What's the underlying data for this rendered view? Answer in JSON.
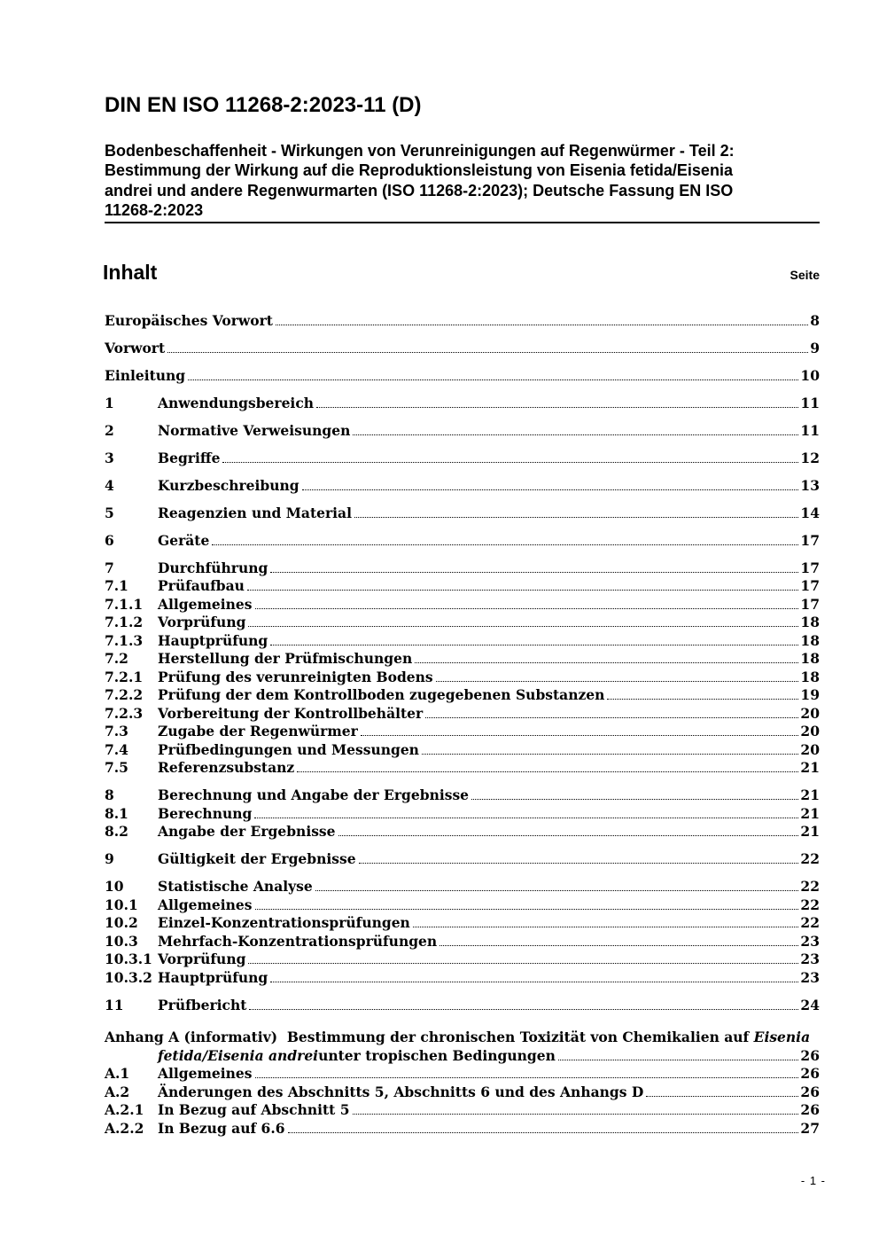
{
  "page": {
    "doc_code": "DIN EN ISO 11268-2:2023-11 (D)",
    "doc_title_lines": [
      "Bodenbeschaffenheit - Wirkungen von Verunreinigungen auf Regenwürmer - Teil 2:",
      "Bestimmung der Wirkung auf die Reproduktionsleistung von Eisenia fetida/Eisenia",
      "andrei und andere Regenwurmarten (ISO 11268-2:2023); Deutsche Fassung EN ISO",
      "11268-2:2023"
    ],
    "footer_page_number": "- 1 -"
  },
  "toc": {
    "heading": "Inhalt",
    "page_column_label": "Seite",
    "entries": [
      {
        "num": "",
        "label": "Europäisches Vorwort",
        "page": "8",
        "style": "front",
        "gap": true
      },
      {
        "num": "",
        "label": "Vorwort",
        "page": "9",
        "style": "front",
        "gap": true
      },
      {
        "num": "",
        "label": "Einleitung",
        "page": "10",
        "style": "front",
        "gap": true
      },
      {
        "num": "1",
        "label": "Anwendungsbereich",
        "page": "11",
        "style": "h1",
        "gap": true
      },
      {
        "num": "2",
        "label": "Normative Verweisungen",
        "page": "11",
        "style": "h1",
        "gap": true
      },
      {
        "num": "3",
        "label": "Begriffe",
        "page": "12",
        "style": "h1",
        "gap": true
      },
      {
        "num": "4",
        "label": "Kurzbeschreibung",
        "page": "13",
        "style": "h1",
        "gap": true
      },
      {
        "num": "5",
        "label": "Reagenzien und Material",
        "page": "14",
        "style": "h1",
        "gap": true
      },
      {
        "num": "6",
        "label": "Geräte",
        "page": "17",
        "style": "h1",
        "gap": true
      },
      {
        "num": "7",
        "label": "Durchführung",
        "page": "17",
        "style": "h1",
        "gap": true
      },
      {
        "num": "7.1",
        "label": "Prüfaufbau",
        "page": "17",
        "style": "sub",
        "gap": false
      },
      {
        "num": "7.1.1",
        "label": "Allgemeines",
        "page": "17",
        "style": "sub",
        "gap": false
      },
      {
        "num": "7.1.2",
        "label": "Vorprüfung",
        "page": "18",
        "style": "sub",
        "gap": false
      },
      {
        "num": "7.1.3",
        "label": "Hauptprüfung",
        "page": "18",
        "style": "sub",
        "gap": false
      },
      {
        "num": "7.2",
        "label": "Herstellung der Prüfmischungen",
        "page": "18",
        "style": "sub",
        "gap": false
      },
      {
        "num": "7.2.1",
        "label": "Prüfung des verunreinigten Bodens",
        "page": "18",
        "style": "sub",
        "gap": false
      },
      {
        "num": "7.2.2",
        "label": "Prüfung der dem Kontrollboden zugegebenen Substanzen",
        "page": "19",
        "style": "sub",
        "gap": false
      },
      {
        "num": "7.2.3",
        "label": "Vorbereitung der Kontrollbehälter",
        "page": "20",
        "style": "sub",
        "gap": false
      },
      {
        "num": "7.3",
        "label": "Zugabe der Regenwürmer",
        "page": "20",
        "style": "sub",
        "gap": false
      },
      {
        "num": "7.4",
        "label": "Prüfbedingungen und Messungen",
        "page": "20",
        "style": "sub",
        "gap": false
      },
      {
        "num": "7.5",
        "label": "Referenzsubstanz",
        "page": "21",
        "style": "sub",
        "gap": false
      },
      {
        "num": "8",
        "label": "Berechnung und Angabe der Ergebnisse",
        "page": "21",
        "style": "h1",
        "gap": true
      },
      {
        "num": "8.1",
        "label": "Berechnung",
        "page": "21",
        "style": "sub",
        "gap": false
      },
      {
        "num": "8.2",
        "label": "Angabe der Ergebnisse",
        "page": "21",
        "style": "sub",
        "gap": false
      },
      {
        "num": "9",
        "label": "Gültigkeit der Ergebnisse",
        "page": "22",
        "style": "h1",
        "gap": true
      },
      {
        "num": "10",
        "label": "Statistische Analyse",
        "page": "22",
        "style": "h1",
        "gap": true
      },
      {
        "num": "10.1",
        "label": "Allgemeines",
        "page": "22",
        "style": "sub",
        "gap": false
      },
      {
        "num": "10.2",
        "label": "Einzel-Konzentrationsprüfungen",
        "page": "22",
        "style": "sub",
        "gap": false
      },
      {
        "num": "10.3",
        "label": "Mehrfach-Konzentrationsprüfungen",
        "page": "23",
        "style": "sub",
        "gap": false
      },
      {
        "num": "10.3.1",
        "label": "Vorprüfung",
        "page": "23",
        "style": "sub",
        "gap": false
      },
      {
        "num": "10.3.2",
        "label": "Hauptprüfung",
        "page": "23",
        "style": "sub",
        "gap": false
      },
      {
        "num": "11",
        "label": "Prüfbericht",
        "page": "24",
        "style": "h1",
        "gap": true
      },
      {
        "style": "annex",
        "gap": true,
        "page": "26",
        "line1_parts": [
          {
            "t": "Anhang A (informativ)  Bestimmung der chronischen Toxizität von Chemikalien auf ",
            "i": false
          },
          {
            "t": "Eisenia",
            "i": true
          }
        ],
        "line2_parts": [
          {
            "t": "fetida/Eisenia andrei",
            "i": true
          },
          {
            "t": " unter tropischen Bedingungen",
            "i": false
          }
        ]
      },
      {
        "num": "A.1",
        "label": "Allgemeines",
        "page": "26",
        "style": "sub",
        "gap": false
      },
      {
        "num": "A.2",
        "label": "Änderungen des Abschnitts 5, Abschnitts 6 und des Anhangs D",
        "page": "26",
        "style": "sub",
        "gap": false
      },
      {
        "num": "A.2.1",
        "label": "In Bezug auf Abschnitt 5",
        "page": "26",
        "style": "sub",
        "gap": false
      },
      {
        "num": "A.2.2",
        "label": "In Bezug auf 6.6",
        "page": "27",
        "style": "sub",
        "gap": false
      }
    ]
  }
}
